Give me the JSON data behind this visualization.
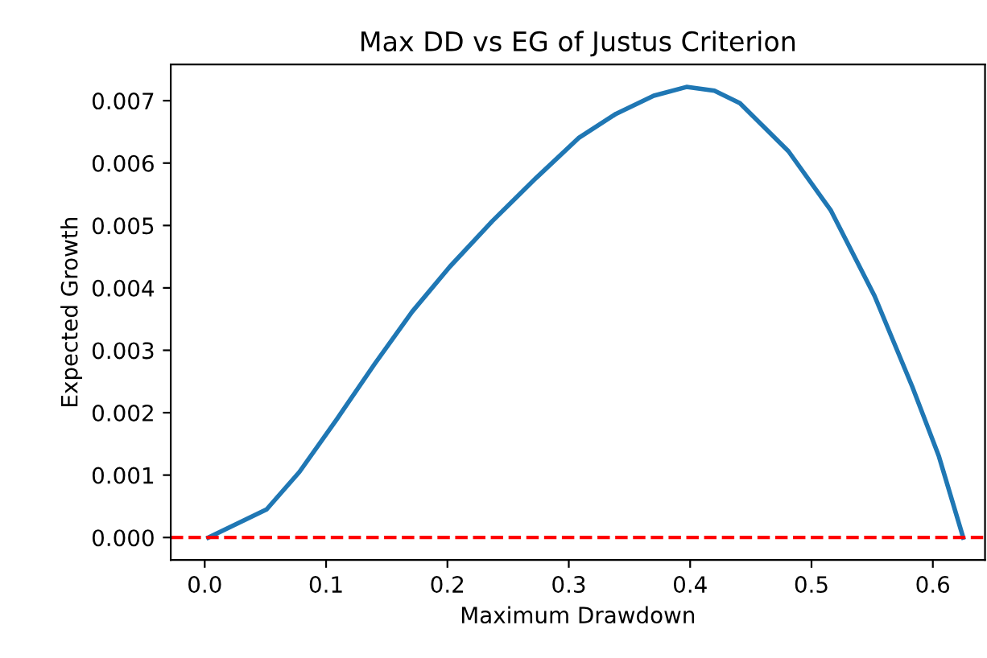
{
  "chart_data": {
    "type": "line",
    "title": "Max DD vs EG of Justus Criterion",
    "xlabel": "Maximum Drawdown",
    "ylabel": "Expected Growth",
    "series": [
      {
        "color": "#1f77b4",
        "x": [
          0.003,
          0.051,
          0.078,
          0.109,
          0.14,
          0.171,
          0.202,
          0.237,
          0.273,
          0.308,
          0.339,
          0.37,
          0.397,
          0.42,
          0.441,
          0.481,
          0.516,
          0.552,
          0.583,
          0.605,
          0.625
        ],
        "values": [
          0.0,
          0.00045,
          0.00105,
          0.0019,
          0.00278,
          0.00362,
          0.00434,
          0.00507,
          0.00576,
          0.0064,
          0.00679,
          0.00708,
          0.00722,
          0.00716,
          0.00696,
          0.00619,
          0.00524,
          0.00387,
          0.00242,
          0.0013,
          0.0
        ]
      }
    ],
    "ref_lines": [
      {
        "axis": "y",
        "value": 0,
        "color": "#ff0000",
        "line_style": "dashed"
      }
    ],
    "xlim": [
      -0.028,
      0.643
    ],
    "ylim": [
      -0.00036,
      0.00758
    ],
    "xticks": [
      {
        "value": 0,
        "label": "0.0"
      },
      0.1,
      0.2,
      0.3,
      0.4,
      0.5,
      0.6
    ],
    "yticks": [
      {
        "value": 0,
        "label": "0.000"
      },
      0.001,
      0.002,
      0.003,
      0.004,
      0.005,
      0.006,
      0.007
    ],
    "marker": "none",
    "line_style": "solid",
    "grid": false,
    "legend": false
  }
}
